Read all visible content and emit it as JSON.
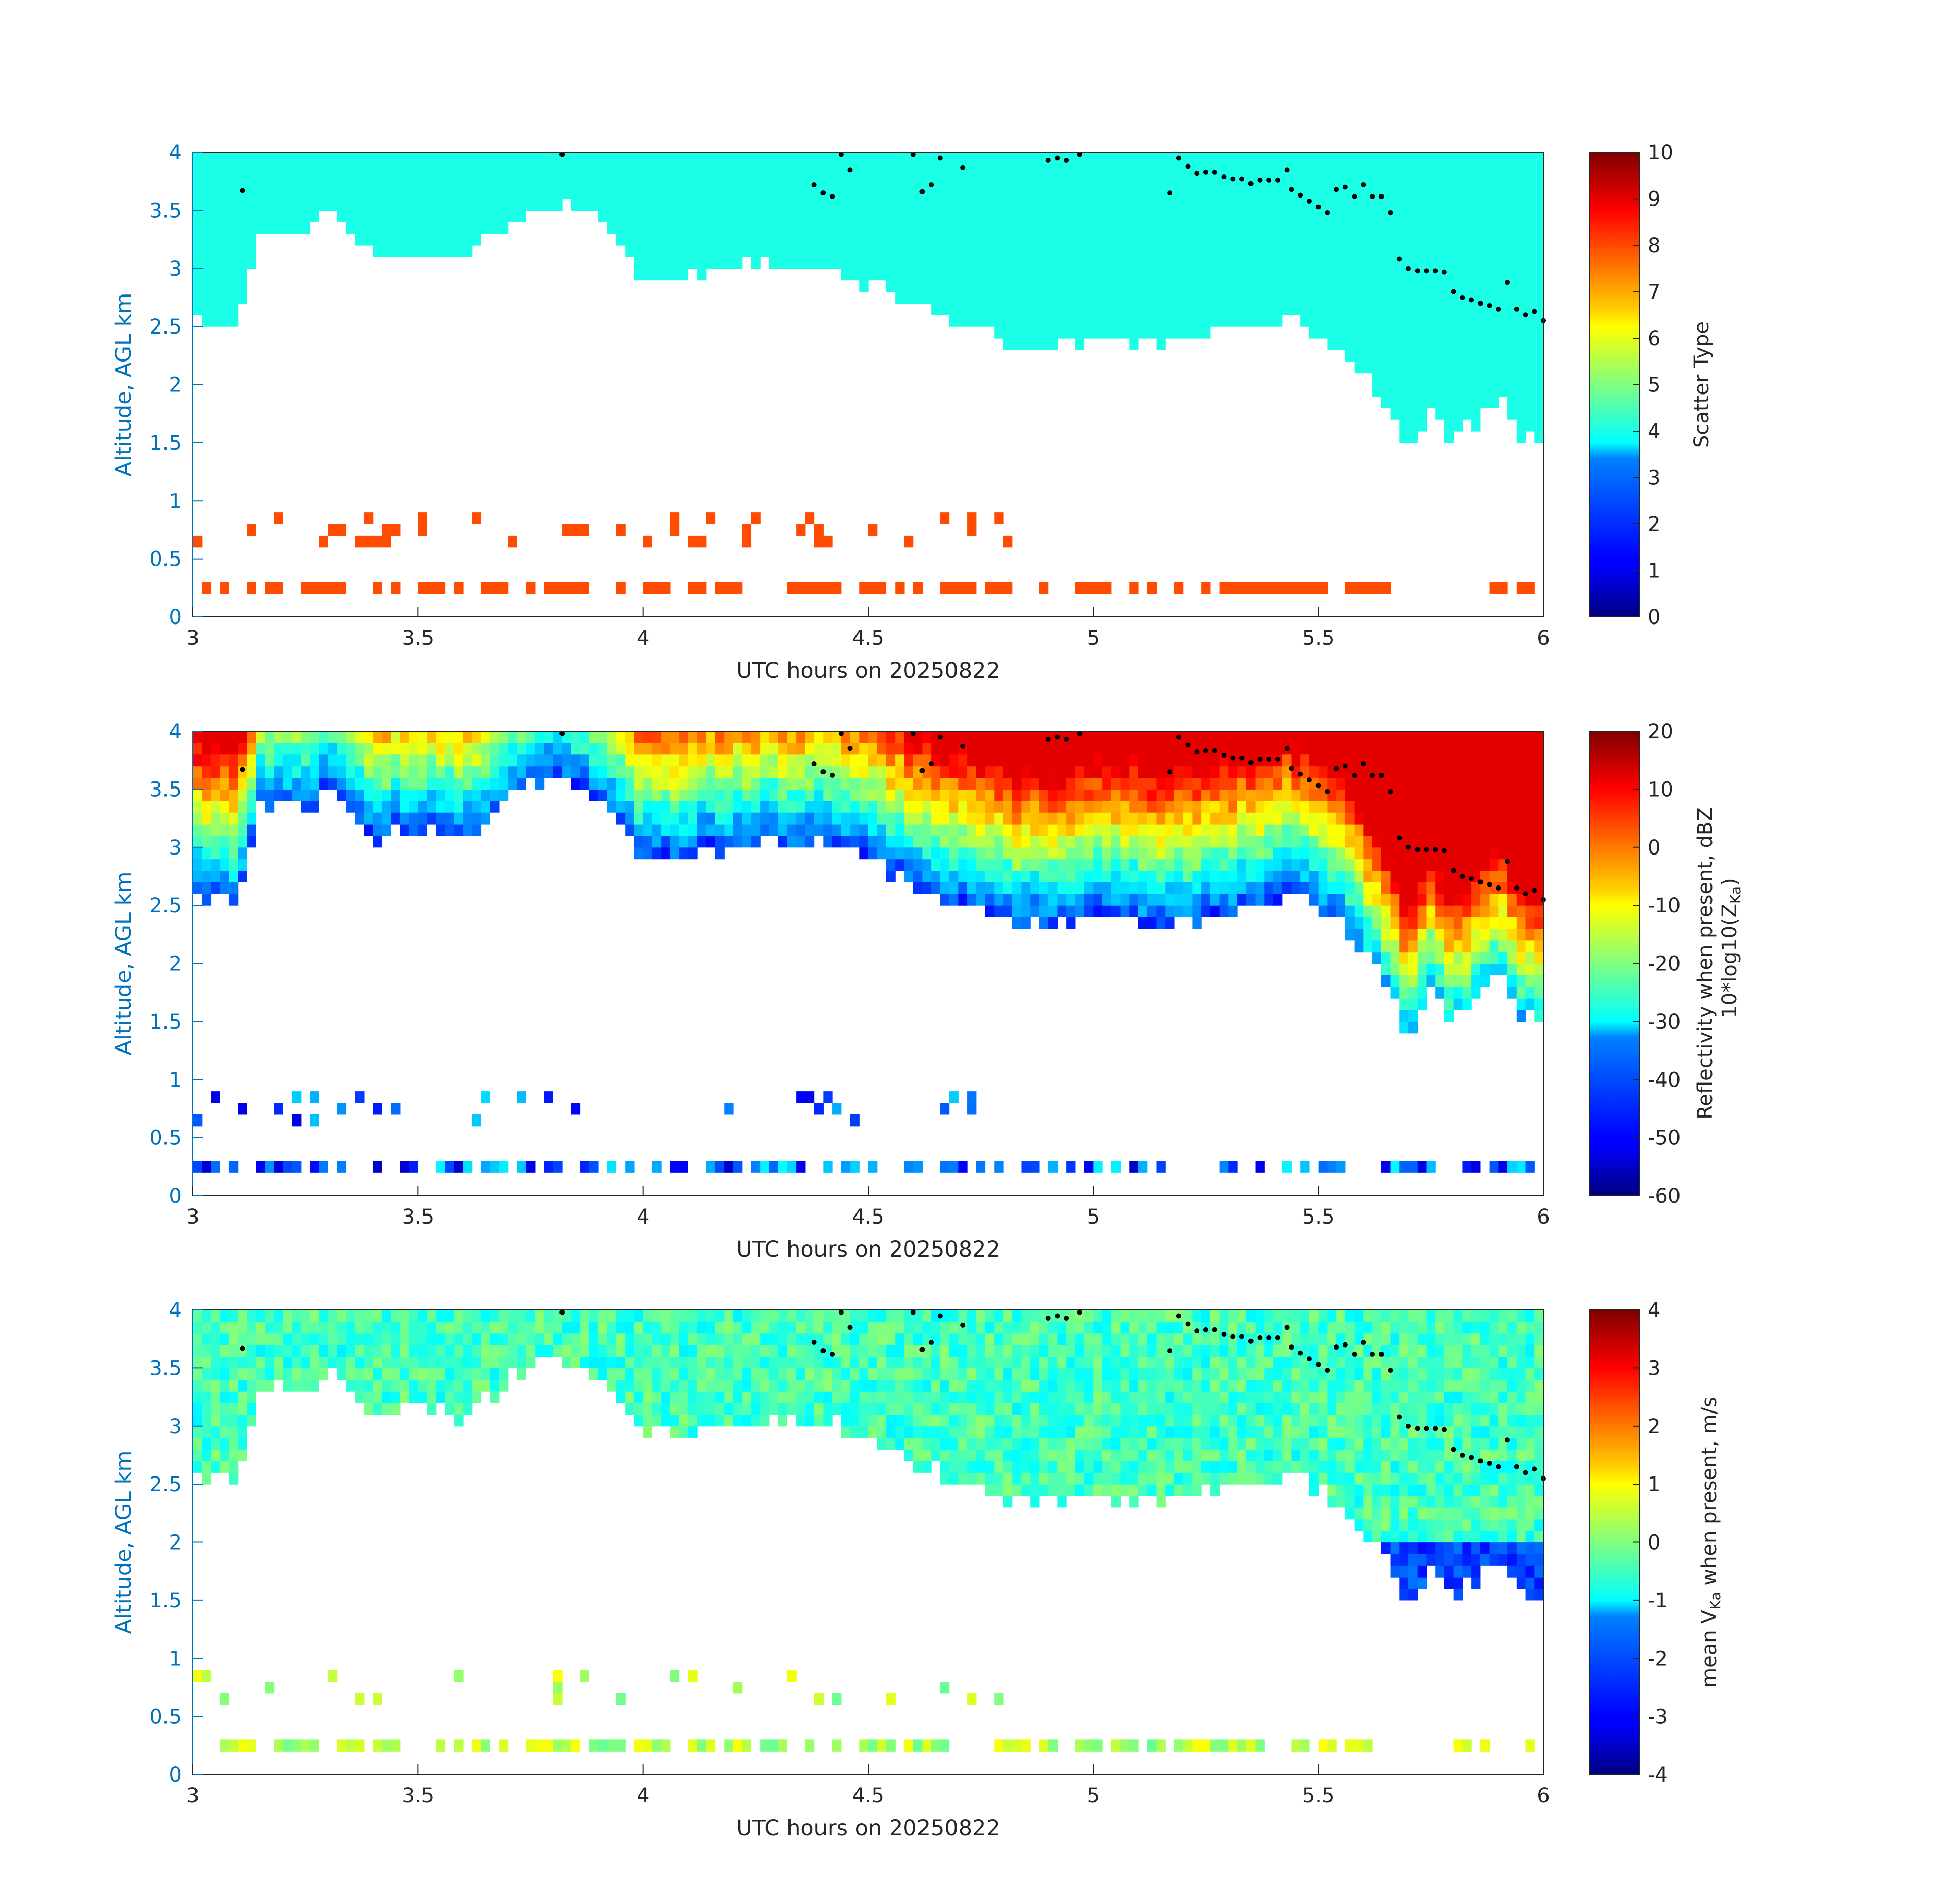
{
  "figure": {
    "date": "20250822"
  },
  "chart_data": [
    {
      "type": "heatmap",
      "title": "",
      "xlabel": "UTC hours on 20250822",
      "ylabel": "Altitude, AGL km",
      "xlim": [
        3,
        6
      ],
      "ylim": [
        0,
        4
      ],
      "x_ticks": [
        "3",
        "3.5",
        "4",
        "4.5",
        "5",
        "5.5",
        "6"
      ],
      "y_ticks": [
        "0",
        "0.5",
        "1",
        "1.5",
        "2",
        "2.5",
        "3",
        "3.5",
        "4"
      ],
      "colorbar": {
        "label": "Scatter Type",
        "range": [
          0,
          10
        ],
        "ticks": [
          "0",
          "1",
          "2",
          "3",
          "4",
          "5",
          "6",
          "7",
          "8",
          "9",
          "10"
        ]
      },
      "field": "scatter_type",
      "cloud_top_km": [
        [
          3.0,
          2.55
        ],
        [
          3.1,
          2.55
        ],
        [
          3.15,
          3.35
        ],
        [
          3.25,
          3.3
        ],
        [
          3.3,
          3.5
        ],
        [
          3.4,
          3.1
        ],
        [
          3.55,
          3.15
        ],
        [
          3.6,
          3.05
        ],
        [
          3.7,
          3.4
        ],
        [
          3.8,
          3.6
        ],
        [
          3.9,
          3.45
        ],
        [
          3.95,
          3.2
        ],
        [
          4.0,
          2.9
        ],
        [
          4.2,
          3.0
        ],
        [
          4.4,
          3.05
        ],
        [
          4.55,
          2.8
        ],
        [
          4.7,
          2.5
        ],
        [
          4.85,
          2.3
        ],
        [
          5.0,
          2.4
        ],
        [
          5.2,
          2.35
        ],
        [
          5.35,
          2.5
        ],
        [
          5.45,
          2.6
        ],
        [
          5.55,
          2.3
        ],
        [
          5.6,
          2.1
        ],
        [
          5.65,
          1.9
        ],
        [
          5.7,
          1.4
        ],
        [
          5.75,
          1.8
        ],
        [
          5.8,
          1.5
        ],
        [
          5.85,
          1.7
        ],
        [
          5.9,
          1.9
        ],
        [
          5.95,
          1.6
        ],
        [
          6.0,
          1.5
        ]
      ],
      "cloud_top_value": 4,
      "low_returns_value": 8,
      "points_label": "cloud-top markers"
    },
    {
      "type": "heatmap",
      "title": "",
      "xlabel": "UTC hours on 20250822",
      "ylabel": "Altitude, AGL km",
      "xlim": [
        3,
        6
      ],
      "ylim": [
        0,
        4
      ],
      "x_ticks": [
        "3",
        "3.5",
        "4",
        "4.5",
        "5",
        "5.5",
        "6"
      ],
      "y_ticks": [
        "0",
        "0.5",
        "1",
        "1.5",
        "2",
        "2.5",
        "3",
        "3.5",
        "4"
      ],
      "colorbar": {
        "label_line1": "Reflectivity when present, dBZ",
        "label_line2": "10*log10(Z",
        "label_sub": "Ka",
        "label_end": ")",
        "range": [
          -60,
          20
        ],
        "ticks": [
          "-60",
          "-50",
          "-40",
          "-30",
          "-20",
          "-10",
          "0",
          "10",
          "20"
        ]
      },
      "field": "reflectivity_dBZ"
    },
    {
      "type": "heatmap",
      "title": "",
      "xlabel": "UTC hours on 20250822",
      "ylabel": "Altitude, AGL km",
      "xlim": [
        3,
        6
      ],
      "ylim": [
        0,
        4
      ],
      "x_ticks": [
        "3",
        "3.5",
        "4",
        "4.5",
        "5",
        "5.5",
        "6"
      ],
      "y_ticks": [
        "0",
        "0.5",
        "1",
        "1.5",
        "2",
        "2.5",
        "3",
        "3.5",
        "4"
      ],
      "colorbar": {
        "label_pre": "mean V",
        "label_sub": "Ka",
        "label_post": " when present, m/s",
        "range": [
          -4,
          4
        ],
        "ticks": [
          "-4",
          "-3",
          "-2",
          "-1",
          "0",
          "1",
          "2",
          "3",
          "4"
        ]
      },
      "field": "mean_doppler_velocity"
    }
  ],
  "markers": [
    [
      3.11,
      3.67
    ],
    [
      3.82,
      3.98
    ],
    [
      4.38,
      3.72
    ],
    [
      4.4,
      3.65
    ],
    [
      4.42,
      3.62
    ],
    [
      4.44,
      3.98
    ],
    [
      4.46,
      3.85
    ],
    [
      4.6,
      3.98
    ],
    [
      4.62,
      3.66
    ],
    [
      4.64,
      3.72
    ],
    [
      4.66,
      3.95
    ],
    [
      4.71,
      3.87
    ],
    [
      4.9,
      3.93
    ],
    [
      4.92,
      3.95
    ],
    [
      4.94,
      3.93
    ],
    [
      4.97,
      3.98
    ],
    [
      5.17,
      3.65
    ],
    [
      5.19,
      3.95
    ],
    [
      5.21,
      3.88
    ],
    [
      5.23,
      3.82
    ],
    [
      5.25,
      3.83
    ],
    [
      5.27,
      3.83
    ],
    [
      5.29,
      3.79
    ],
    [
      5.31,
      3.77
    ],
    [
      5.33,
      3.77
    ],
    [
      5.35,
      3.73
    ],
    [
      5.37,
      3.76
    ],
    [
      5.39,
      3.76
    ],
    [
      5.41,
      3.76
    ],
    [
      5.43,
      3.85
    ],
    [
      5.44,
      3.68
    ],
    [
      5.46,
      3.63
    ],
    [
      5.48,
      3.58
    ],
    [
      5.5,
      3.53
    ],
    [
      5.52,
      3.48
    ],
    [
      5.54,
      3.68
    ],
    [
      5.56,
      3.7
    ],
    [
      5.58,
      3.62
    ],
    [
      5.6,
      3.72
    ],
    [
      5.62,
      3.62
    ],
    [
      5.64,
      3.62
    ],
    [
      5.66,
      3.48
    ],
    [
      5.68,
      3.08
    ],
    [
      5.7,
      3.0
    ],
    [
      5.72,
      2.98
    ],
    [
      5.74,
      2.98
    ],
    [
      5.76,
      2.98
    ],
    [
      5.78,
      2.97
    ],
    [
      5.8,
      2.8
    ],
    [
      5.82,
      2.75
    ],
    [
      5.84,
      2.73
    ],
    [
      5.86,
      2.7
    ],
    [
      5.88,
      2.68
    ],
    [
      5.9,
      2.65
    ],
    [
      5.92,
      2.88
    ],
    [
      5.94,
      2.65
    ],
    [
      5.96,
      2.6
    ],
    [
      5.98,
      2.63
    ],
    [
      6.0,
      2.55
    ]
  ]
}
